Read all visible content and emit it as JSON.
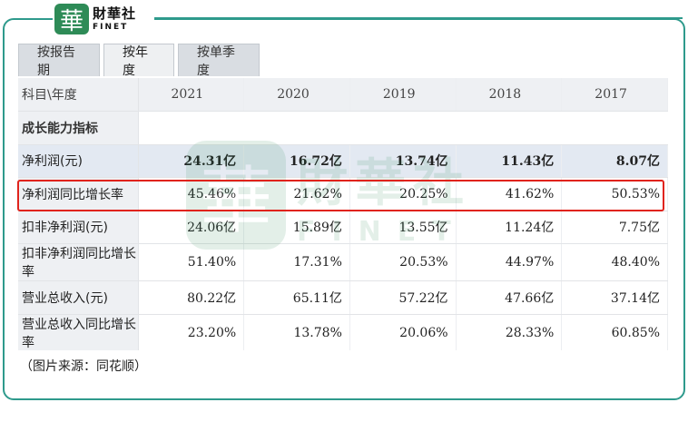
{
  "logo": {
    "mark": "華",
    "cn": "財華社",
    "en": "FINET"
  },
  "watermark": {
    "mark": "華",
    "cn": "財華社",
    "en": "FINET"
  },
  "tabs": [
    {
      "label": "按报告期",
      "active": false
    },
    {
      "label": "按年度",
      "active": true
    },
    {
      "label": "按单季度",
      "active": false
    }
  ],
  "table": {
    "header_label": "科目\\年度",
    "years": [
      "2021",
      "2020",
      "2019",
      "2018",
      "2017"
    ],
    "section_label": "成长能力指标",
    "rows": [
      {
        "label": "净利润(元)",
        "values": [
          "24.31亿",
          "16.72亿",
          "13.74亿",
          "11.43亿",
          "8.07亿"
        ],
        "highlight": true
      },
      {
        "label": "净利润同比增长率",
        "values": [
          "45.46%",
          "21.62%",
          "20.25%",
          "41.62%",
          "50.53%"
        ],
        "boxed": true
      },
      {
        "label": "扣非净利润(元)",
        "values": [
          "24.06亿",
          "15.89亿",
          "13.55亿",
          "11.24亿",
          "7.75亿"
        ]
      },
      {
        "label": "扣非净利润同比增长率",
        "values": [
          "51.40%",
          "17.31%",
          "20.53%",
          "44.97%",
          "48.40%"
        ]
      },
      {
        "label": "营业总收入(元)",
        "values": [
          "80.22亿",
          "65.11亿",
          "57.22亿",
          "47.66亿",
          "37.14亿"
        ]
      },
      {
        "label": "营业总收入同比增长率",
        "values": [
          "23.20%",
          "13.78%",
          "20.06%",
          "28.33%",
          "60.85%"
        ]
      }
    ]
  },
  "source_note": "（图片来源：同花顺）",
  "colors": {
    "frame": "#2e9a8c",
    "highlight_box": "#e0231c",
    "logo": "#2e8b57"
  }
}
